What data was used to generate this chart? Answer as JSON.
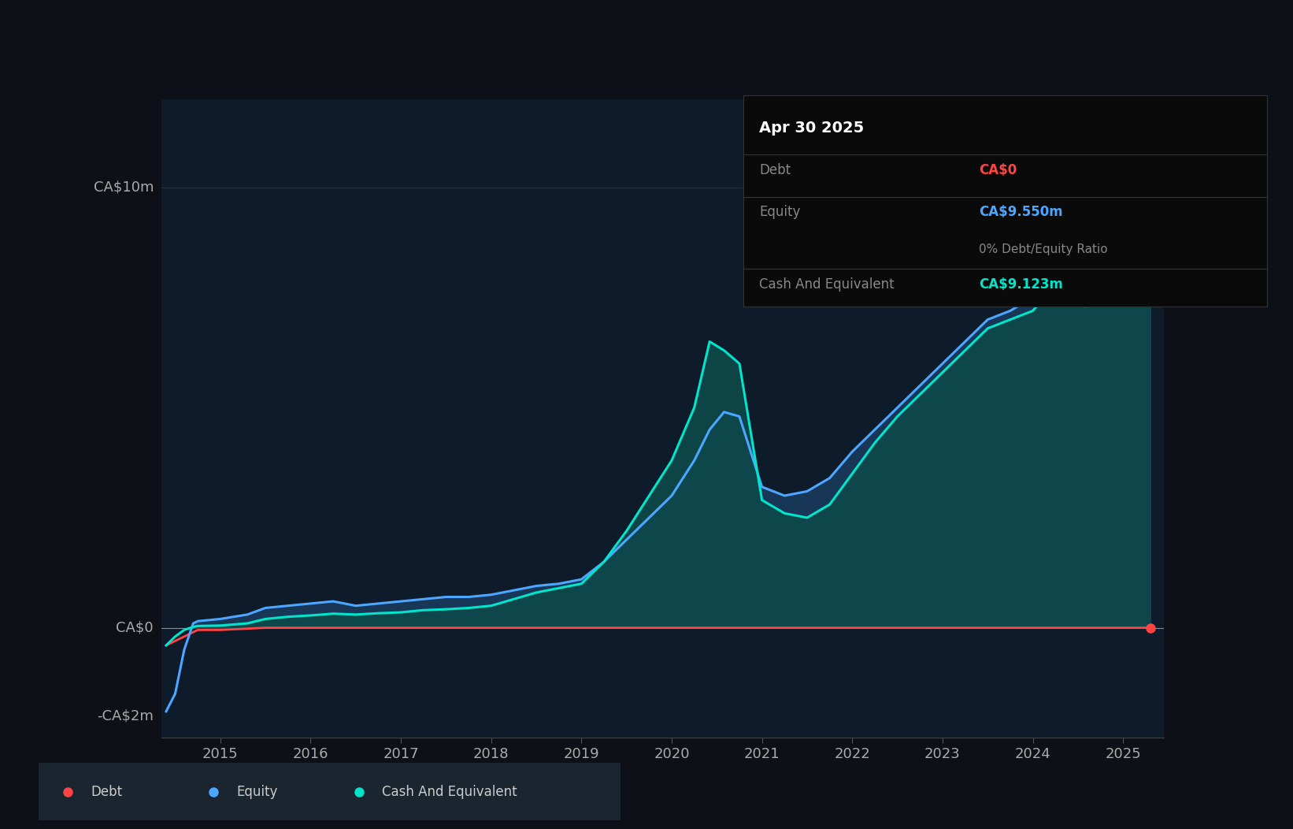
{
  "bg_color": "#0d1117",
  "plot_bg_color": "#0d1b2a",
  "grid_color": "#2a3a4a",
  "tooltip_date": "Apr 30 2025",
  "tooltip_debt_label": "Debt",
  "tooltip_debt_value": "CA$0",
  "tooltip_debt_color": "#ff4444",
  "tooltip_equity_label": "Equity",
  "tooltip_equity_value": "CA$9.550m",
  "tooltip_equity_color": "#4da6ff",
  "tooltip_ratio": "0% Debt/Equity Ratio",
  "tooltip_cash_label": "Cash And Equivalent",
  "tooltip_cash_value": "CA$9.123m",
  "tooltip_cash_color": "#00e5cc",
  "ylabel_10": "CA$10m",
  "ylabel_0": "CA$0",
  "ylabel_neg2": "-CA$2m",
  "debt_color": "#ff4444",
  "equity_color": "#4da6ff",
  "cash_color": "#00e5cc",
  "equity_fill_color": "#1a3a5c",
  "cash_fill_color": "#0d4a4a",
  "ylim_min": -2.5,
  "ylim_max": 12.0,
  "xtick_years": [
    2015,
    2016,
    2017,
    2018,
    2019,
    2020,
    2021,
    2022,
    2023,
    2024,
    2025
  ],
  "legend_items": [
    {
      "label": "Debt",
      "color": "#ff4444"
    },
    {
      "label": "Equity",
      "color": "#4da6ff"
    },
    {
      "label": "Cash And Equivalent",
      "color": "#00e5cc"
    }
  ]
}
